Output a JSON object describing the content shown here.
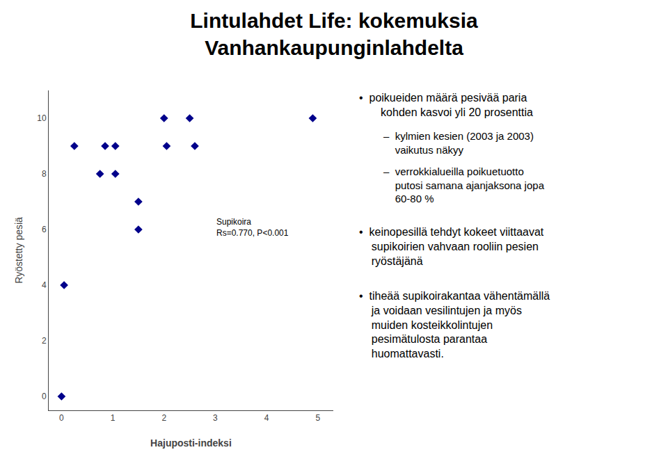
{
  "chart_data": {
    "type": "scatter",
    "title": "Lintulahdet Life: kokemuksia",
    "subtitle": "Vanhankaupunginlahdelta",
    "x": [
      0.0,
      0.05,
      0.25,
      0.75,
      0.85,
      1.05,
      1.05,
      1.5,
      1.5,
      2.0,
      2.05,
      2.5,
      2.6,
      4.9
    ],
    "values": [
      0,
      4,
      9,
      8,
      9,
      8,
      9,
      6,
      7,
      10,
      9,
      10,
      9,
      10
    ],
    "color": "#00008B",
    "marker": "diamond",
    "xlabel": "Hajuposti-indeksi",
    "ylabel": "Ryöstetty pesiä",
    "xlim": [
      -0.25,
      5.3
    ],
    "ylim": [
      -0.5,
      11.0
    ],
    "xticks": [
      0,
      1,
      2,
      3,
      4,
      5
    ],
    "yticks": [
      0,
      2,
      4,
      6,
      8,
      10
    ],
    "grid": false,
    "annotations": [
      {
        "text": "Supikoira\nRs=0.770, P<0.001",
        "x": 3.0,
        "y": 6.5
      }
    ],
    "notes": [
      "•  poikueiden määrä pesivää paria\n       kohden kasvoi yli 20 prosenttia",
      "–  kylmien kesien (2003 ja 2003)\n    vaikutus näkyy",
      "–  verrokkialueilla poikuetuotto\n    putosi samana ajanjaksona jopa\n    60-80 %",
      "•  keinopesillä tehdyt kokeet viittaavat\n    supikoirien vahvaan rooliin pesien\n    ryöstäjänä",
      "•  tihеää supikoirakantaa vähentämällä\n    ja voidaan vesilintujen ja myös\n    muiden kosteikkolintujen\n    pesimätulosta parantaa\n    huomattavasti."
    ]
  }
}
